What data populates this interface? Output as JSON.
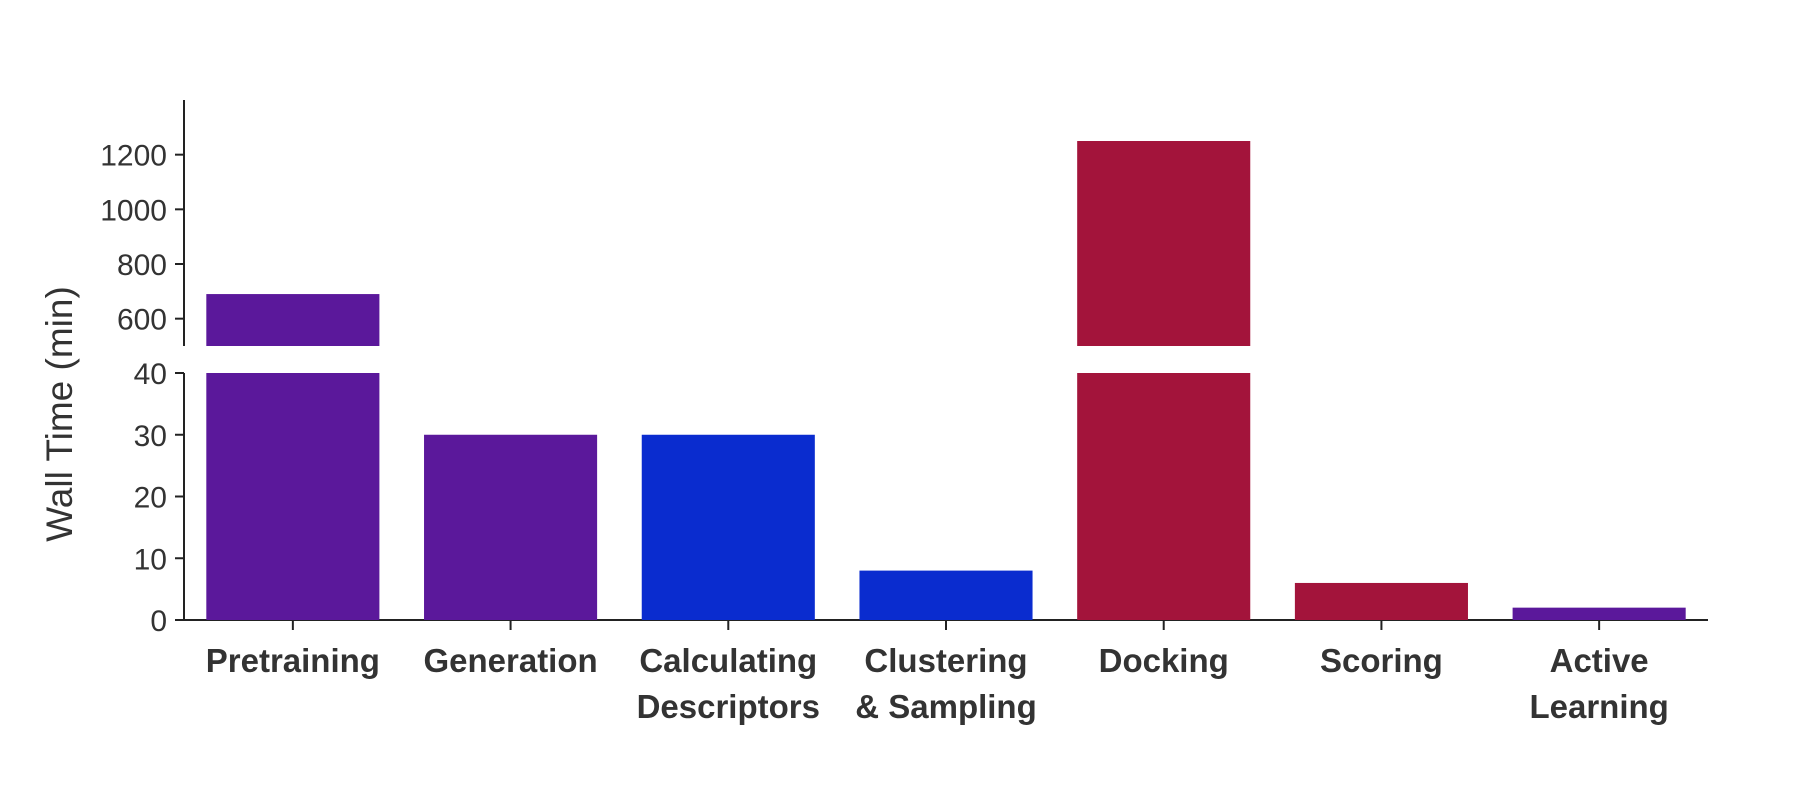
{
  "chart_data": {
    "type": "bar",
    "ylabel": "Wall Time (min)",
    "axis_break": true,
    "categories": [
      [
        "Pretraining"
      ],
      [
        "Generation"
      ],
      [
        "Calculating",
        "Descriptors"
      ],
      [
        "Clustering",
        "& Sampling"
      ],
      [
        "Docking"
      ],
      [
        "Scoring"
      ],
      [
        "Active",
        "Learning"
      ]
    ],
    "values": [
      690,
      30,
      30,
      8,
      1250,
      6,
      2
    ],
    "colors": [
      "#5b189b",
      "#5b189b",
      "#0a2ccf",
      "#0a2ccf",
      "#a3143b",
      "#a3143b",
      "#5b189b"
    ],
    "lower_ylim": [
      0,
      40
    ],
    "lower_ticks": [
      0,
      10,
      20,
      30,
      40
    ],
    "upper_ylim": [
      500,
      1400
    ],
    "upper_ticks": [
      600,
      800,
      1000,
      1200
    ]
  }
}
